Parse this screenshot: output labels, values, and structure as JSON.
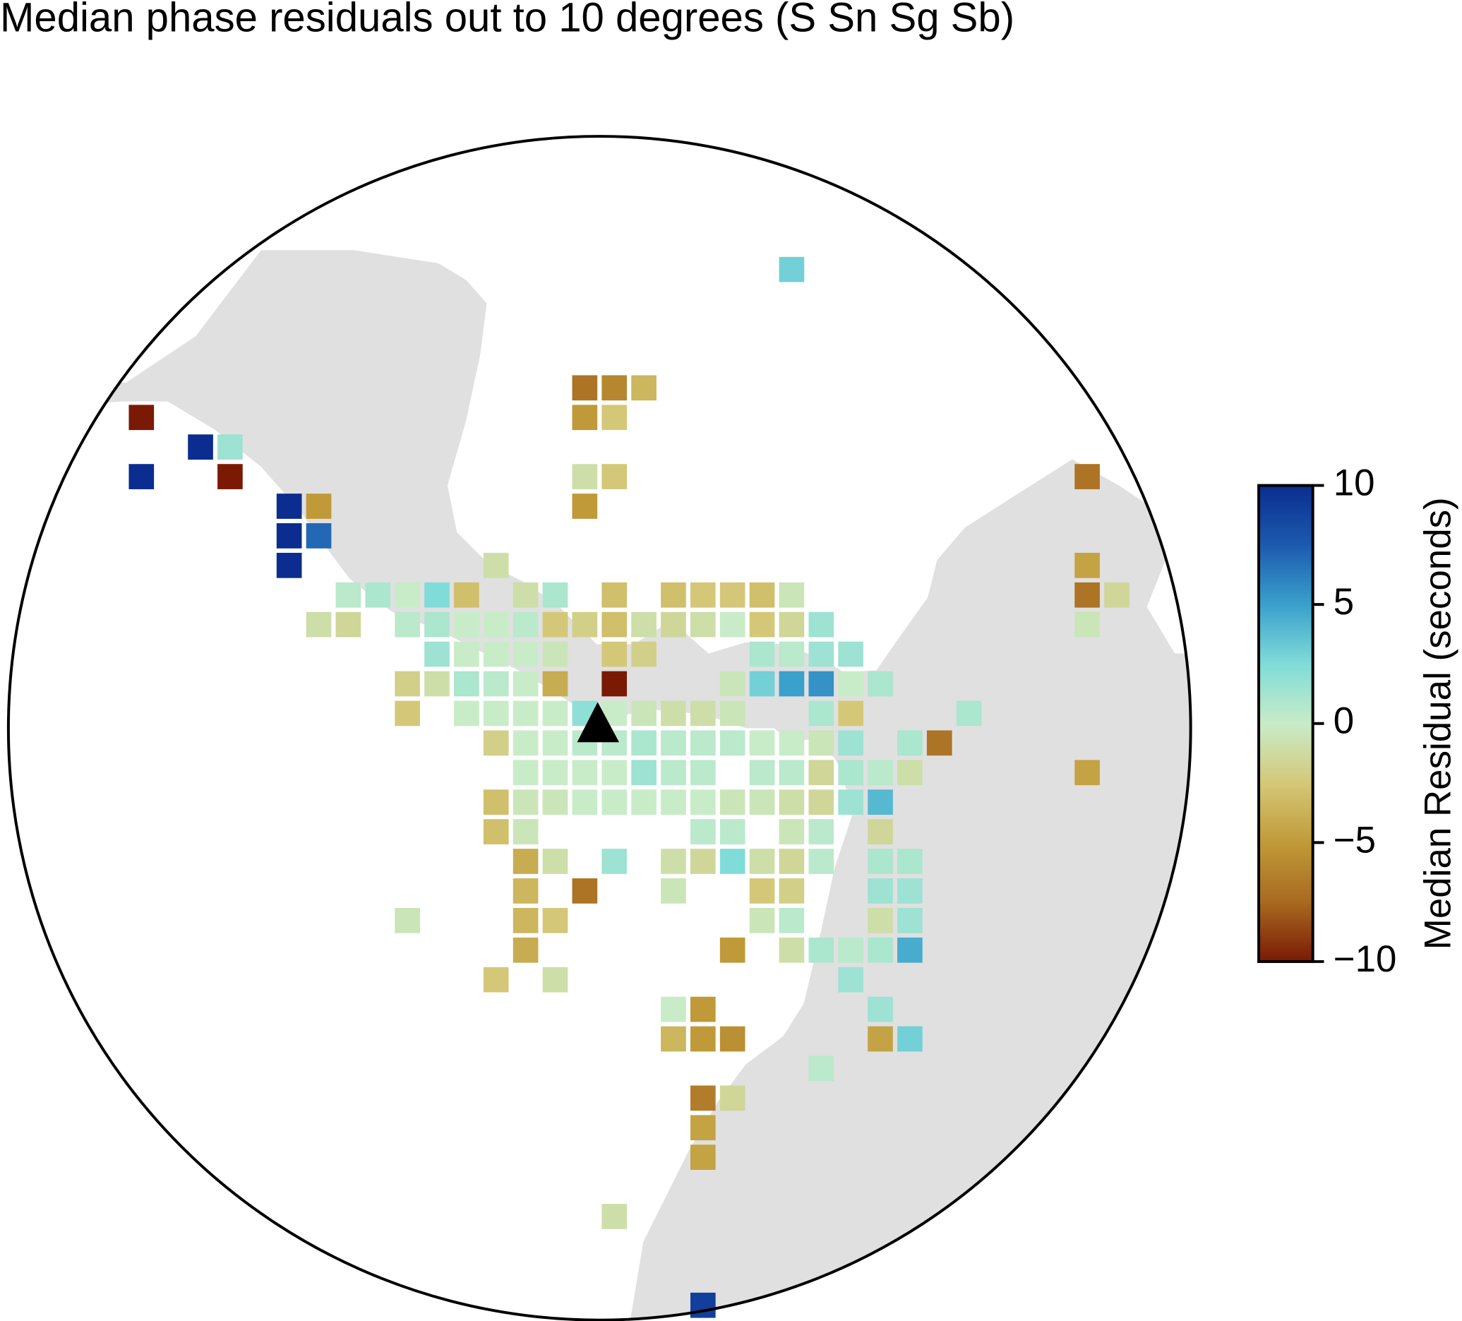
{
  "chart_data": {
    "type": "gridmap",
    "title": "Median phase residuals out to 10 degrees (S Sn Sg Sb)",
    "colorbar_label": "Median Residual (seconds)",
    "xlim": [
      -10,
      10
    ],
    "ylim": [
      -10,
      10
    ],
    "clim": [
      -10,
      10
    ],
    "cticks": [
      {
        "value": -10,
        "label": "−10"
      },
      {
        "value": -5,
        "label": "−5"
      },
      0,
      5,
      10
    ],
    "colormap": [
      "#7a1a05",
      "#a86a20",
      "#c09a38",
      "#d4c878",
      "#c8ecc8",
      "#80dcd8",
      "#3aa0cc",
      "#1c5aae",
      "#0a2d8f"
    ],
    "x": [
      3.25,
      -0.25,
      0.25,
      0.75,
      -7.75,
      -0.25,
      0.25,
      -6.75,
      -6.25,
      -7.75,
      -6.25,
      -0.25,
      0.25,
      8.25,
      -5.25,
      -4.75,
      -0.25,
      -5.25,
      -4.75,
      -5.25,
      -1.75,
      8.25,
      -4.25,
      -3.75,
      -3.25,
      -2.75,
      -2.25,
      -1.25,
      -0.75,
      0.25,
      1.25,
      1.75,
      2.25,
      2.75,
      3.25,
      8.25,
      8.75,
      -4.75,
      -4.25,
      -3.25,
      -2.75,
      -2.25,
      -1.75,
      -1.25,
      -0.75,
      -0.25,
      0.25,
      0.75,
      1.25,
      1.75,
      2.25,
      2.75,
      3.25,
      3.75,
      8.25,
      -2.75,
      -2.25,
      -1.75,
      -1.25,
      -0.75,
      0.25,
      0.75,
      2.75,
      3.25,
      3.75,
      4.25,
      -3.25,
      -2.75,
      -2.25,
      -1.75,
      -1.25,
      -0.75,
      0.25,
      2.25,
      2.75,
      3.25,
      3.75,
      4.25,
      4.75,
      -3.25,
      -2.25,
      -1.75,
      -1.25,
      -0.75,
      -0.25,
      0.25,
      0.75,
      1.25,
      1.75,
      2.25,
      3.75,
      4.25,
      6.25,
      -1.75,
      -1.25,
      -0.75,
      -0.25,
      0.25,
      0.75,
      1.25,
      1.75,
      2.25,
      2.75,
      3.25,
      3.75,
      4.25,
      5.25,
      5.75,
      -1.25,
      -0.75,
      -0.25,
      0.25,
      0.75,
      1.25,
      1.75,
      2.75,
      3.25,
      3.75,
      4.25,
      4.75,
      5.25,
      8.25,
      -1.75,
      -1.25,
      -0.75,
      -0.25,
      0.25,
      0.75,
      1.25,
      1.75,
      2.25,
      2.75,
      3.25,
      3.75,
      4.25,
      4.75,
      -1.75,
      -1.25,
      1.75,
      2.25,
      3.25,
      3.75,
      4.75,
      -1.25,
      -0.75,
      0.25,
      1.25,
      1.75,
      2.25,
      2.75,
      3.25,
      3.75,
      4.75,
      5.25,
      -1.25,
      -0.25,
      1.25,
      2.75,
      3.25,
      4.75,
      5.25,
      -3.25,
      -1.25,
      -0.75,
      2.75,
      3.25,
      4.75,
      5.25,
      -1.25,
      2.25,
      3.25,
      3.75,
      4.25,
      4.75,
      5.25,
      -1.75,
      -0.75,
      4.25,
      1.25,
      1.75,
      4.75,
      1.25,
      1.75,
      2.25,
      4.75,
      5.25,
      3.75,
      1.75,
      2.25,
      1.75,
      1.75,
      0.25,
      1.75
    ],
    "y": [
      7.75,
      5.75,
      5.75,
      5.75,
      5.25,
      5.25,
      5.25,
      4.75,
      4.75,
      4.25,
      4.25,
      4.25,
      4.25,
      4.25,
      3.75,
      3.75,
      3.75,
      3.25,
      3.25,
      2.75,
      2.75,
      2.75,
      2.25,
      2.25,
      2.25,
      2.25,
      2.25,
      2.25,
      2.25,
      2.25,
      2.25,
      2.25,
      2.25,
      2.25,
      2.25,
      2.25,
      2.25,
      1.75,
      1.75,
      1.75,
      1.75,
      1.75,
      1.75,
      1.75,
      1.75,
      1.75,
      1.75,
      1.75,
      1.75,
      1.75,
      1.75,
      1.75,
      1.75,
      1.75,
      1.75,
      1.25,
      1.25,
      1.25,
      1.25,
      1.25,
      1.25,
      1.25,
      1.25,
      1.25,
      1.25,
      1.25,
      0.75,
      0.75,
      0.75,
      0.75,
      0.75,
      0.75,
      0.75,
      0.75,
      0.75,
      0.75,
      0.75,
      0.75,
      0.75,
      0.25,
      0.25,
      0.25,
      0.25,
      0.25,
      0.25,
      0.25,
      0.25,
      0.25,
      0.25,
      0.25,
      0.25,
      0.25,
      0.25,
      -0.25,
      -0.25,
      -0.25,
      -0.25,
      -0.25,
      -0.25,
      -0.25,
      -0.25,
      -0.25,
      -0.25,
      -0.25,
      -0.25,
      -0.25,
      -0.25,
      -0.25,
      -0.75,
      -0.75,
      -0.75,
      -0.75,
      -0.75,
      -0.75,
      -0.75,
      -0.75,
      -0.75,
      -0.75,
      -0.75,
      -0.75,
      -0.75,
      -0.75,
      -1.25,
      -1.25,
      -1.25,
      -1.25,
      -1.25,
      -1.25,
      -1.25,
      -1.25,
      -1.25,
      -1.25,
      -1.25,
      -1.25,
      -1.25,
      -1.25,
      -1.75,
      -1.75,
      -1.75,
      -1.75,
      -1.75,
      -1.75,
      -1.75,
      -2.25,
      -2.25,
      -2.25,
      -2.25,
      -2.25,
      -2.25,
      -2.25,
      -2.25,
      -2.25,
      -2.25,
      -2.25,
      -2.75,
      -2.75,
      -2.75,
      -2.75,
      -2.75,
      -2.75,
      -2.75,
      -3.25,
      -3.25,
      -3.25,
      -3.25,
      -3.25,
      -3.25,
      -3.25,
      -3.75,
      -3.75,
      -3.75,
      -3.75,
      -3.75,
      -3.75,
      -3.75,
      -4.25,
      -4.25,
      -4.25,
      -4.75,
      -4.75,
      -4.75,
      -5.25,
      -5.25,
      -5.25,
      -5.25,
      -5.25,
      -5.75,
      -6.25,
      -6.25,
      -6.75,
      -7.25,
      -8.25,
      -9.75
    ],
    "values": [
      3,
      -7,
      -6,
      -3.5,
      -10,
      -5,
      -2.5,
      10,
      1.5,
      10,
      -10,
      -1,
      -2.5,
      -7,
      10,
      -5,
      -5,
      10,
      7,
      10,
      -1,
      -4.5,
      0.5,
      1,
      0,
      2.5,
      -3,
      -1,
      1,
      -3,
      -3,
      -2.5,
      -2.5,
      -3,
      -0.5,
      -7,
      -1.5,
      -1,
      -1.5,
      0.5,
      1,
      0,
      0,
      0.5,
      -2.5,
      -2,
      -3,
      -1,
      -1.5,
      -1,
      0,
      -2.5,
      -1.5,
      1.5,
      -0.5,
      1.5,
      0,
      0,
      0,
      -0.5,
      -2.5,
      -2,
      1,
      0.5,
      1.5,
      1.5,
      -2,
      -1,
      1,
      0.5,
      0,
      -4,
      -10,
      -0.5,
      3,
      5,
      5.5,
      0,
      1,
      -2.5,
      0,
      0,
      0,
      0,
      2,
      0,
      -0.5,
      -1,
      -1,
      -0.5,
      1,
      -2.5,
      1,
      -2,
      0,
      0,
      0.5,
      0.5,
      1,
      0.5,
      0.5,
      0.5,
      0,
      0,
      -0.5,
      1.5,
      1,
      -7,
      0,
      0,
      0,
      0,
      1.5,
      0.5,
      0.5,
      0.5,
      0.5,
      -1.5,
      1,
      0.5,
      -1,
      -4.5,
      -3,
      -0.5,
      -0.5,
      0,
      0,
      0,
      0,
      0,
      -0.5,
      -0.5,
      -1,
      -1.5,
      1.5,
      4,
      -3,
      -0.5,
      0.5,
      0.5,
      -0.5,
      0.5,
      -1.5,
      -4,
      -1,
      1.5,
      -1,
      -1.5,
      2.5,
      -1,
      -1.5,
      0.5,
      1,
      1,
      -3.5,
      -7,
      -0.5,
      -2.5,
      -2,
      1.5,
      1.5,
      -0.5,
      -3.5,
      -2.5,
      -0.5,
      0.5,
      -1,
      1.5,
      -4,
      -5,
      -1,
      1,
      0.5,
      1,
      4.5,
      -2.5,
      -1,
      1.5,
      0,
      -5,
      1.5,
      -3.5,
      -5,
      -5.5,
      -4.5,
      3,
      0.5,
      -6.5,
      -1.5,
      -4.5,
      -4.5,
      -1,
      9
    ]
  }
}
